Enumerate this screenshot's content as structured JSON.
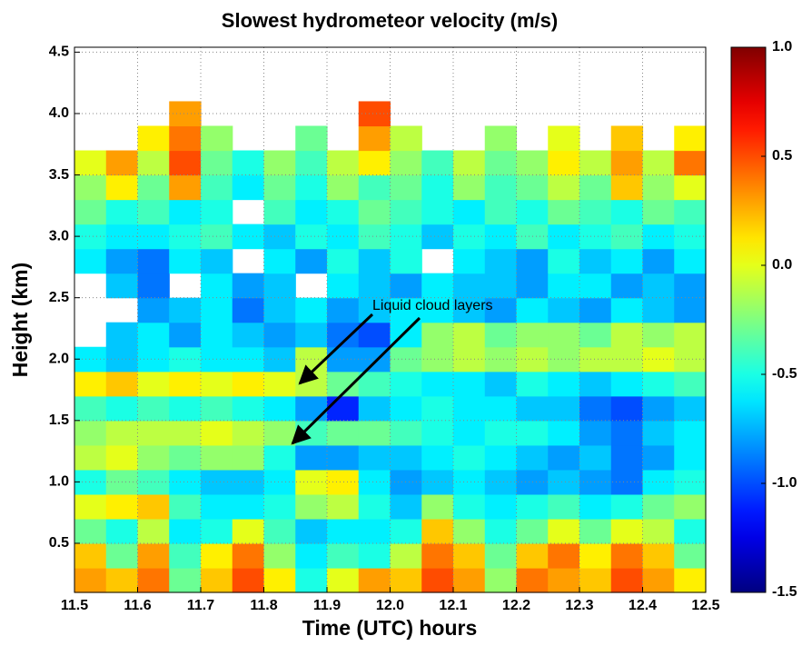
{
  "chart_data": {
    "type": "heatmap",
    "title": "Slowest hydrometeor velocity (m/s)",
    "x_label": "Time (UTC) hours",
    "y_label": "Height (km)",
    "annotation": "Liquid cloud layers",
    "colormap": "jet",
    "clim": [
      -1.5,
      1.0
    ],
    "grid": true,
    "xlim": [
      11.5,
      12.5
    ],
    "ylim": [
      0.1,
      4.54
    ],
    "xticks": [
      11.5,
      11.6,
      11.7,
      11.8,
      11.9,
      {
        "value": 12,
        "label": "12.0"
      },
      12.1,
      12.2,
      12.3,
      12.4,
      12.5
    ],
    "yticks": [
      0.5,
      {
        "value": 1,
        "label": "1.0"
      },
      1.5,
      {
        "value": 2,
        "label": "2.0"
      },
      2.5,
      {
        "value": 3,
        "label": "3.0"
      },
      3.5,
      {
        "value": 4,
        "label": "4.0"
      },
      4.5
    ],
    "cticks": [
      {
        "value": -1.5,
        "label": "-1.5"
      },
      {
        "value": -1,
        "label": "-1.0"
      },
      {
        "value": -0.5,
        "label": "-0.5"
      },
      {
        "value": 0,
        "label": "0.0"
      },
      {
        "value": 0.5,
        "label": "0.5"
      },
      {
        "value": 1,
        "label": "1.0"
      }
    ],
    "x": [
      11.525,
      11.575,
      11.625,
      11.675,
      11.725,
      11.775,
      11.825,
      11.875,
      11.925,
      11.975,
      12.025,
      12.075,
      12.125,
      12.175,
      12.225,
      12.275,
      12.325,
      12.375,
      12.425,
      12.475
    ],
    "y": [
      0.2,
      0.4,
      0.6,
      0.8,
      1.0,
      1.2,
      1.4,
      1.6,
      1.8,
      2.0,
      2.2,
      2.4,
      2.6,
      2.8,
      3.0,
      3.2,
      3.4,
      3.6,
      3.8,
      4.0,
      4.2,
      4.4
    ],
    "z": [
      [
        0.3,
        0.2,
        0.4,
        -0.3,
        0.2,
        0.5,
        0.1,
        -0.5,
        0,
        0.3,
        0.2,
        0.5,
        0.3,
        -0.2,
        0.4,
        0.3,
        0.2,
        0.5,
        0.3,
        0.1
      ],
      [
        0.2,
        -0.3,
        0.3,
        -0.4,
        0.1,
        0.4,
        -0.2,
        -0.6,
        -0.4,
        -0.5,
        -0.1,
        0.4,
        0.2,
        -0.3,
        0.2,
        0.4,
        0.1,
        0.4,
        0.2,
        -0.3
      ],
      [
        -0.3,
        -0.5,
        -0.1,
        -0.6,
        -0.5,
        0,
        -0.4,
        -0.7,
        -0.6,
        -0.6,
        -0.5,
        0.2,
        -0.2,
        -0.5,
        -0.3,
        0,
        -0.3,
        0,
        -0.1,
        -0.5
      ],
      [
        0,
        0.1,
        0.2,
        -0.4,
        -0.6,
        -0.6,
        -0.5,
        -0.2,
        -0.1,
        -0.5,
        -0.7,
        -0.2,
        -0.5,
        -0.6,
        -0.5,
        -0.4,
        -0.6,
        -0.5,
        -0.3,
        -0.2
      ],
      [
        -0.5,
        -0.3,
        -0.4,
        -0.6,
        -0.7,
        -0.7,
        -0.6,
        0,
        0.1,
        -0.6,
        -0.8,
        -0.7,
        -0.6,
        -0.7,
        -0.8,
        -0.7,
        -0.8,
        -0.9,
        -0.6,
        -0.5
      ],
      [
        -0.1,
        0,
        -0.2,
        -0.3,
        -0.2,
        -0.2,
        -0.5,
        -0.8,
        -0.8,
        -0.7,
        -0.7,
        -0.6,
        -0.5,
        -0.6,
        -0.7,
        -0.8,
        -0.7,
        -0.9,
        -0.8,
        -0.6
      ],
      [
        -0.2,
        -0.1,
        -0.1,
        -0.1,
        0,
        -0.1,
        -0.2,
        -0.4,
        -0.3,
        -0.3,
        -0.4,
        -0.5,
        -0.6,
        -0.5,
        -0.5,
        -0.6,
        -0.8,
        -0.9,
        -0.7,
        -0.6
      ],
      [
        -0.4,
        -0.5,
        -0.4,
        -0.5,
        -0.4,
        -0.5,
        -0.6,
        -0.8,
        -1.1,
        -0.7,
        -0.6,
        -0.5,
        -0.6,
        -0.6,
        -0.7,
        -0.7,
        -0.9,
        -1.0,
        -0.8,
        -0.7
      ],
      [
        0.1,
        0.2,
        0,
        0.1,
        0,
        0.1,
        0,
        -0.1,
        -0.3,
        -0.4,
        -0.5,
        -0.6,
        -0.6,
        -0.7,
        -0.5,
        -0.6,
        -0.7,
        -0.6,
        -0.5,
        -0.4
      ],
      [
        -0.6,
        -0.7,
        -0.6,
        -0.5,
        -0.6,
        -0.6,
        -0.7,
        -0.1,
        -0.8,
        -0.8,
        -0.3,
        -0.2,
        -0.1,
        -0.2,
        -0.1,
        -0.2,
        -0.1,
        -0.1,
        0,
        -0.1
      ],
      [
        null,
        -0.7,
        -0.6,
        -0.8,
        -0.6,
        -0.7,
        -0.8,
        -0.7,
        -0.9,
        -1.0,
        -0.6,
        -0.2,
        -0.1,
        -0.3,
        -0.2,
        -0.2,
        -0.3,
        -0.1,
        -0.2,
        -0.1
      ],
      [
        null,
        null,
        -0.8,
        -0.7,
        -0.6,
        -0.9,
        -0.7,
        -0.6,
        -0.8,
        -0.7,
        -0.6,
        -0.6,
        -0.7,
        -0.8,
        -0.6,
        -0.7,
        -0.8,
        -0.6,
        -0.7,
        -0.8
      ],
      [
        null,
        -0.7,
        -0.9,
        null,
        -0.6,
        -0.8,
        -0.7,
        null,
        -0.6,
        -0.7,
        -0.8,
        -0.6,
        -0.7,
        -0.7,
        -0.8,
        -0.6,
        -0.6,
        -0.8,
        -0.7,
        -0.8
      ],
      [
        -0.6,
        -0.8,
        -0.9,
        -0.6,
        -0.7,
        null,
        -0.6,
        -0.8,
        -0.5,
        -0.7,
        -0.5,
        null,
        -0.6,
        -0.7,
        -0.8,
        -0.5,
        -0.7,
        -0.6,
        -0.8,
        -0.6
      ],
      [
        -0.5,
        -0.6,
        -0.6,
        -0.5,
        -0.4,
        -0.6,
        -0.7,
        -0.5,
        -0.6,
        -0.4,
        -0.5,
        -0.7,
        -0.5,
        -0.6,
        -0.4,
        -0.6,
        -0.5,
        -0.4,
        -0.6,
        -0.5
      ],
      [
        -0.3,
        -0.5,
        -0.4,
        -0.6,
        -0.5,
        null,
        -0.4,
        -0.6,
        -0.5,
        -0.3,
        -0.4,
        -0.5,
        -0.6,
        -0.4,
        -0.5,
        -0.3,
        -0.4,
        -0.5,
        -0.3,
        -0.4
      ],
      [
        -0.2,
        0.1,
        -0.3,
        0.3,
        -0.4,
        -0.6,
        -0.3,
        -0.5,
        -0.2,
        -0.4,
        -0.3,
        -0.5,
        -0.2,
        -0.4,
        -0.3,
        -0.1,
        -0.3,
        0.2,
        -0.2,
        0
      ],
      [
        0,
        0.3,
        -0.1,
        0.5,
        -0.3,
        -0.5,
        -0.2,
        -0.4,
        -0.1,
        0.1,
        -0.2,
        -0.4,
        -0.1,
        -0.3,
        -0.2,
        0.1,
        -0.1,
        0.3,
        -0.1,
        0.4
      ],
      [
        null,
        null,
        0.1,
        0.4,
        -0.2,
        null,
        null,
        -0.3,
        null,
        0.3,
        -0.1,
        null,
        null,
        -0.2,
        null,
        0,
        null,
        0.2,
        null,
        0.1
      ],
      [
        null,
        null,
        null,
        0.3,
        null,
        null,
        null,
        null,
        null,
        0.5,
        null,
        null,
        null,
        null,
        null,
        null,
        null,
        null,
        null,
        null
      ],
      [
        null,
        null,
        null,
        null,
        null,
        null,
        null,
        null,
        null,
        null,
        null,
        null,
        null,
        null,
        null,
        null,
        null,
        null,
        null,
        null
      ],
      [
        null,
        null,
        null,
        null,
        null,
        null,
        null,
        null,
        null,
        null,
        null,
        null,
        null,
        null,
        null,
        null,
        null,
        null,
        null,
        null
      ]
    ]
  }
}
